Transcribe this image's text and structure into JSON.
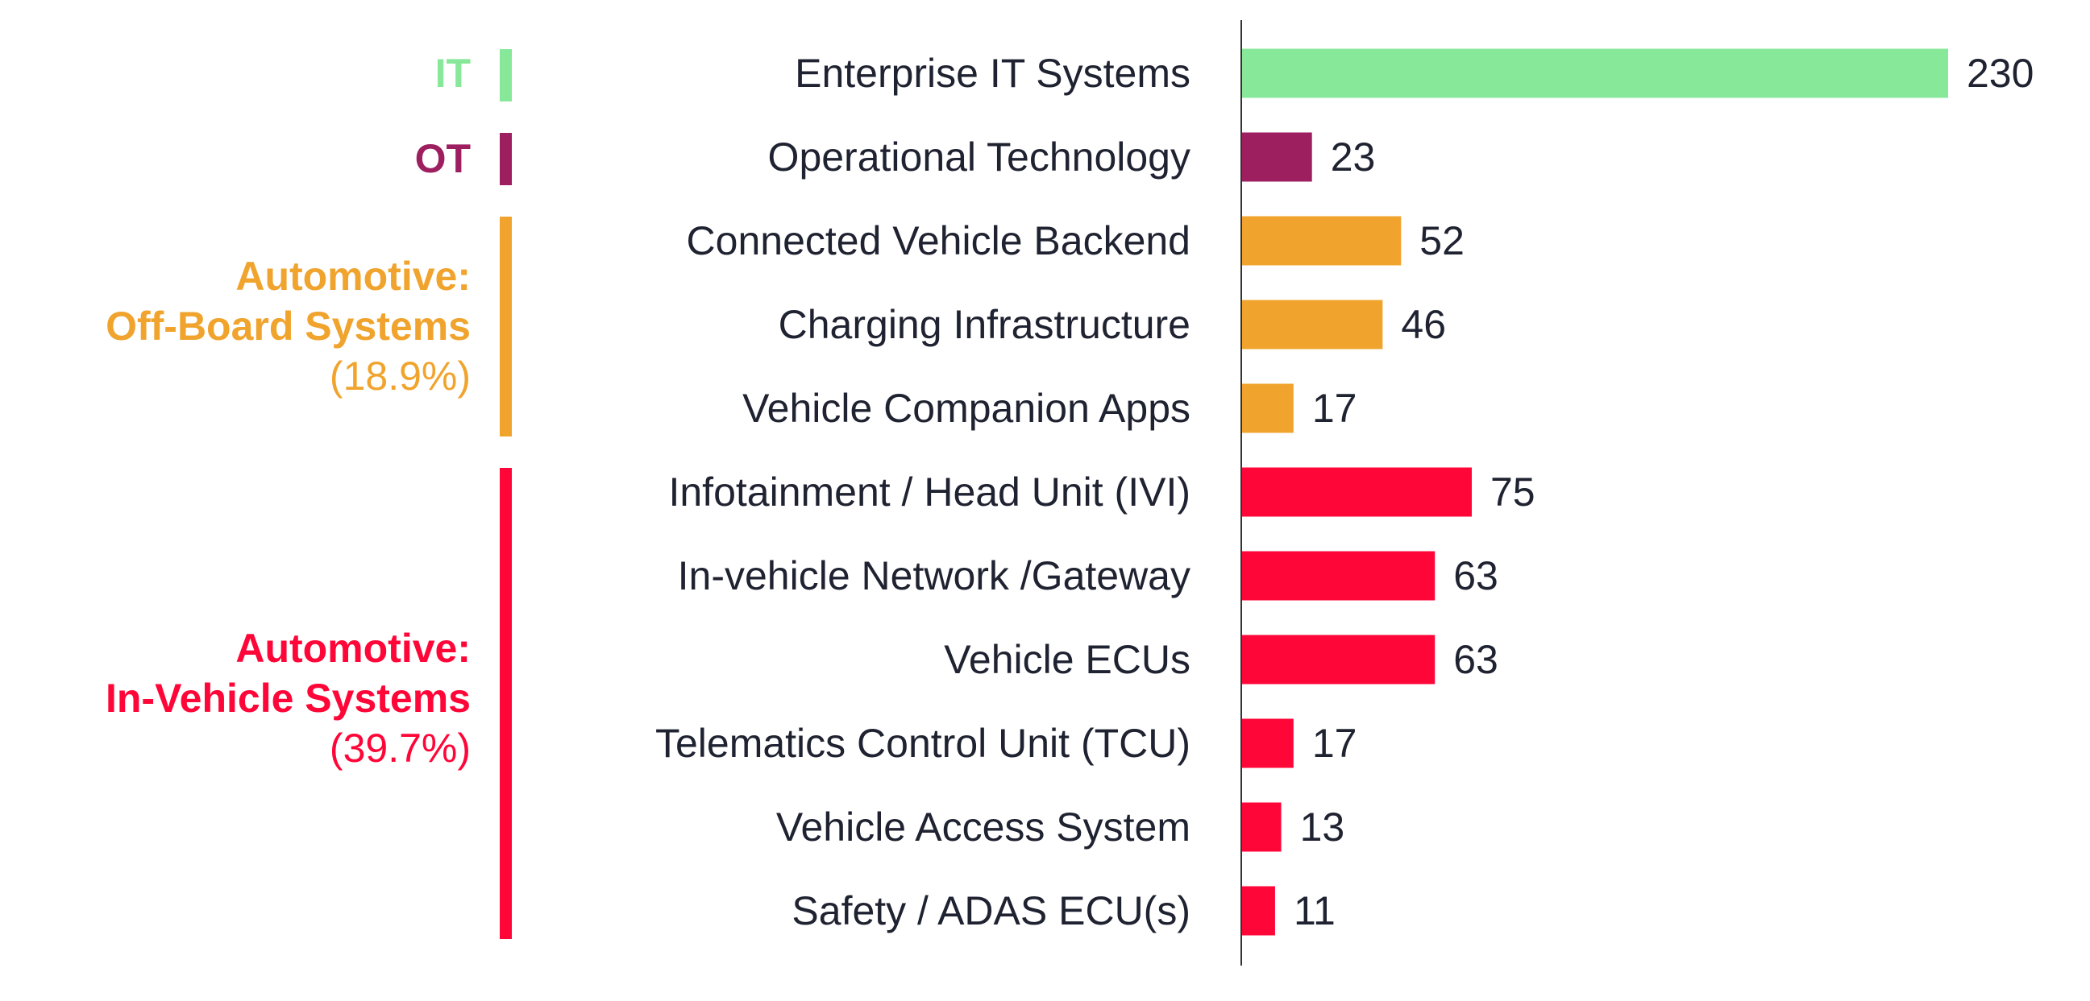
{
  "chart_data": {
    "type": "bar",
    "orientation": "horizontal",
    "categories": [
      "Enterprise IT Systems",
      "Operational Technology",
      "Connected Vehicle Backend",
      "Charging Infrastructure",
      "Vehicle Companion Apps",
      "Infotainment / Head Unit (IVI)",
      "In-vehicle Network /Gateway",
      "Vehicle ECUs",
      "Telematics Control Unit (TCU)",
      "Vehicle Access System",
      "Safety / ADAS ECU(s)"
    ],
    "values": [
      230,
      23,
      52,
      46,
      17,
      75,
      63,
      63,
      17,
      13,
      11
    ],
    "groups": [
      {
        "name": "IT",
        "share": "",
        "color": "#88e89a",
        "members": [
          0
        ]
      },
      {
        "name": "OT",
        "share": "",
        "color": "#9d1f60",
        "members": [
          1
        ]
      },
      {
        "name": "Automotive:\nOff-Board Systems",
        "line1": "Automotive:",
        "line2": "Off-Board Systems",
        "share": "(18.9%)",
        "color": "#f0a42d",
        "members": [
          2,
          3,
          4
        ]
      },
      {
        "name": "Automotive:\nIn-Vehicle Systems",
        "line1": "Automotive:",
        "line2": "In-Vehicle Systems",
        "share": "(39.7%)",
        "color": "#ff0638",
        "members": [
          5,
          6,
          7,
          8,
          9,
          10
        ]
      }
    ],
    "title": "",
    "xlabel": "",
    "ylabel": "",
    "xlim": [
      0,
      230
    ],
    "grid": false,
    "data_labels": true
  }
}
